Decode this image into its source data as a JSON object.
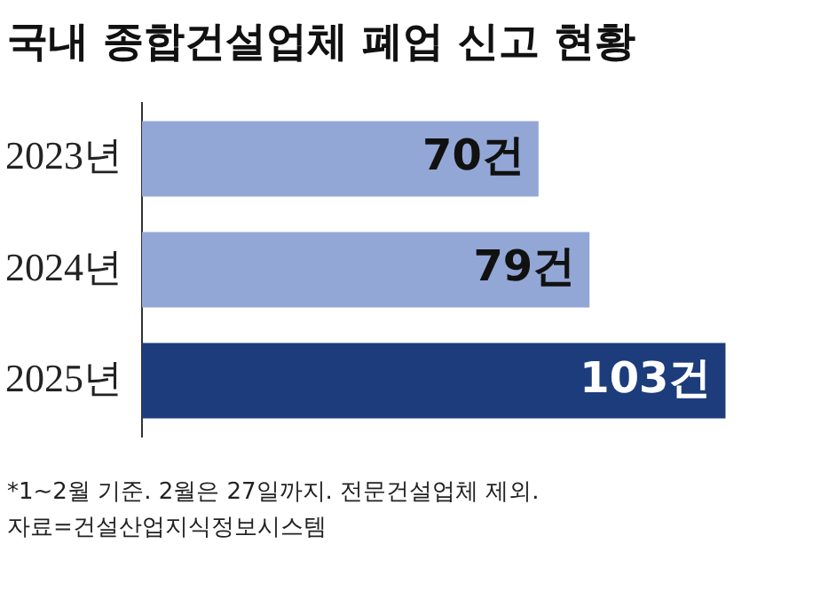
{
  "chart_data": {
    "type": "bar",
    "orientation": "horizontal",
    "title": "국내 종합건설업체 폐업 신고 현황",
    "categories": [
      "2023년",
      "2024년",
      "2025년"
    ],
    "values": [
      70,
      79,
      103
    ],
    "colors": [
      "#93a7d6",
      "#93a7d6",
      "#1c3c7c"
    ],
    "value_labels": [
      "70건",
      "79건",
      "103건"
    ],
    "annotations": [
      "*1~2월 기준. 2월은 27일까지. 전문건설업체 제외.",
      "자료=건설산업지식정보시스템"
    ]
  }
}
